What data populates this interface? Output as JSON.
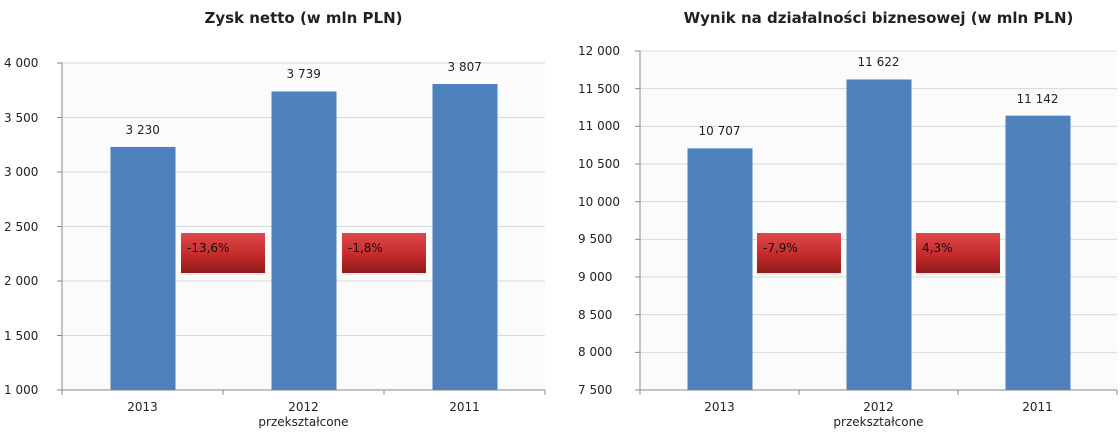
{
  "chart_data": [
    {
      "type": "bar",
      "title": "Zysk netto (w mln PLN)",
      "categories": [
        "2013",
        "2012 przekształcone",
        "2011"
      ],
      "values": [
        3230,
        3739,
        3807
      ],
      "value_labels": [
        "3 230",
        "3 739",
        "3 807"
      ],
      "color": "#4f81bd",
      "ylim": [
        1000,
        4000
      ],
      "yticks": [
        {
          "value": 1000,
          "label": "1 000"
        },
        {
          "value": 1500,
          "label": "1 500"
        },
        {
          "value": 2000,
          "label": "2 000"
        },
        {
          "value": 2500,
          "label": "2 500"
        },
        {
          "value": 3000,
          "label": "3 000"
        },
        {
          "value": 3500,
          "label": "3 500"
        },
        {
          "value": 4000,
          "label": "4 000"
        }
      ],
      "grid": true,
      "annotations": [
        "-13,6%",
        "-1,8%"
      ]
    },
    {
      "type": "bar",
      "title": "Wynik na działalności biznesowej (w mln PLN)",
      "categories": [
        "2013",
        "2012 przekształcone",
        "2011"
      ],
      "values": [
        10707,
        11622,
        11142
      ],
      "value_labels": [
        "10 707",
        "11 622",
        "11 142"
      ],
      "color": "#4f81bd",
      "ylim": [
        7500,
        12000
      ],
      "yticks": [
        {
          "value": 7500,
          "label": "7 500"
        },
        {
          "value": 8000,
          "label": "8 000"
        },
        {
          "value": 8500,
          "label": "8 500"
        },
        {
          "value": 9000,
          "label": "9 000"
        },
        {
          "value": 9500,
          "label": "9 500"
        },
        {
          "value": 10000,
          "label": "10 000"
        },
        {
          "value": 10500,
          "label": "10 500"
        },
        {
          "value": 11000,
          "label": "11 000"
        },
        {
          "value": 11500,
          "label": "11 500"
        },
        {
          "value": 12000,
          "label": "12 000"
        }
      ],
      "grid": true,
      "annotations": [
        "-7,9%",
        "4,3%"
      ]
    }
  ]
}
